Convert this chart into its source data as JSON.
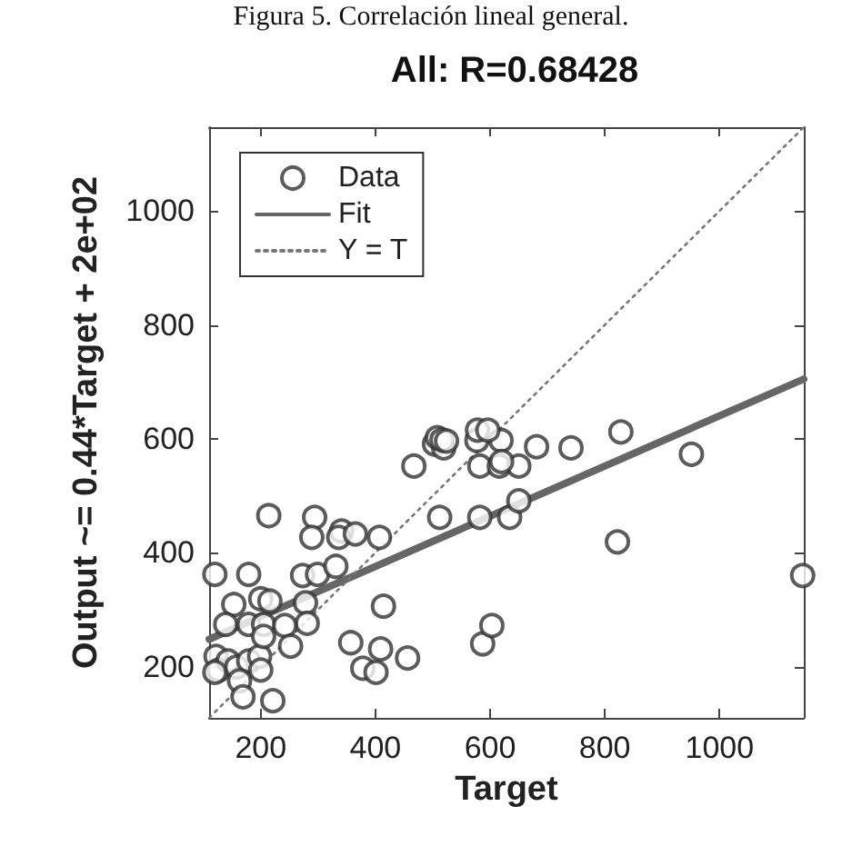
{
  "chart_data": {
    "type": "scatter",
    "title": "All: R=0.68428",
    "xlabel": "Target",
    "ylabel": "Output ~= 0.44*Target + 2e+02",
    "annotations": [
      "Figura 5. Correlación lineal general."
    ],
    "xlim": [
      110,
      1147
    ],
    "ylim": [
      110,
      1147
    ],
    "xticks": [
      200,
      400,
      600,
      800,
      1000
    ],
    "yticks": [
      200,
      400,
      600,
      800,
      1000
    ],
    "grid": false,
    "legend": "top left",
    "marker": "circle",
    "series": [
      {
        "name": "Data",
        "color": "#333333",
        "x": [
          120,
          214,
          294,
          289,
          341,
          336,
          365,
          407,
          467,
          512,
          273,
          299,
          331,
          179,
          153,
          200,
          216,
          278,
          281,
          139,
          179,
          205,
          242,
          122,
          127,
          143,
          158,
          179,
          198,
          200,
          120,
          163,
          205,
          252,
          169,
          221,
          357,
          378,
          401,
          409,
          456,
          414,
          587,
          603,
          582,
          634,
          650,
          503,
          519,
          582,
          616,
          650,
          577,
          619,
          681,
          951,
          822,
          1145,
          741,
          508,
          516,
          524,
          578,
          596,
          828,
          620
        ],
        "values": [
          362,
          465,
          462,
          427,
          438,
          427,
          433,
          427,
          552,
          462,
          360,
          362,
          376,
          362,
          309,
          319,
          315,
          312,
          276,
          274,
          274,
          274,
          272,
          218,
          194,
          210,
          199,
          210,
          218,
          194,
          190,
          175,
          253,
          236,
          147,
          140,
          242,
          197,
          190,
          231,
          215,
          306,
          240,
          272,
          462,
          462,
          491,
          591,
          584,
          552,
          552,
          552,
          597,
          597,
          586,
          573,
          419,
          360,
          584,
          602,
          598,
          596,
          615,
          615,
          612,
          560
        ]
      },
      {
        "name": "Fit",
        "type": "line",
        "marker": "none",
        "line_style": "solid",
        "color": "#666666",
        "x": [
          110,
          1147
        ],
        "values": [
          248,
          705
        ]
      },
      {
        "name": "Y = T",
        "type": "line",
        "marker": "none",
        "line_style": "dotted",
        "color": "#777777",
        "x": [
          110,
          1147
        ],
        "values": [
          110,
          1147
        ]
      }
    ]
  }
}
